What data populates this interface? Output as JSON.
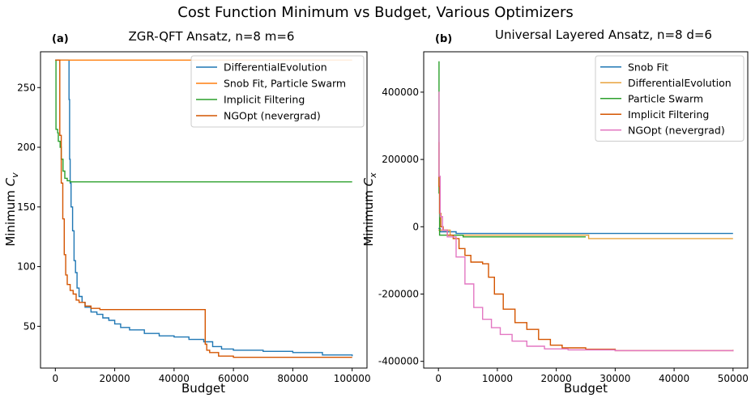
{
  "figure": {
    "suptitle": "Cost Function Minimum vs Budget, Various Optimizers"
  },
  "chart_data": [
    {
      "type": "line",
      "panel_label": "(a)",
      "title": "ZGR-QFT Ansatz, n=8 m=6",
      "xlabel": "Budget",
      "ylabel": "Minimum C_v",
      "ylabel_main": "Minimum ",
      "ylabel_var": "C",
      "ylabel_sub": "v",
      "xlim": [
        -5000,
        105000
      ],
      "ylim": [
        15,
        280
      ],
      "xticks": [
        0,
        20000,
        40000,
        60000,
        80000,
        100000
      ],
      "yticks": [
        50,
        100,
        150,
        200,
        250
      ],
      "legend_position": "top-right",
      "series": [
        {
          "name": "DifferentialEvolution",
          "color": "#1f77b4",
          "points": [
            [
              0,
              273
            ],
            [
              4500,
              273
            ],
            [
              4600,
              240
            ],
            [
              4800,
              190
            ],
            [
              5000,
              170
            ],
            [
              5300,
              150
            ],
            [
              5800,
              130
            ],
            [
              6300,
              105
            ],
            [
              6800,
              95
            ],
            [
              7300,
              82
            ],
            [
              8000,
              75
            ],
            [
              9000,
              70
            ],
            [
              10000,
              66
            ],
            [
              12000,
              62
            ],
            [
              14000,
              60
            ],
            [
              16000,
              57
            ],
            [
              18000,
              55
            ],
            [
              20000,
              52
            ],
            [
              22000,
              49
            ],
            [
              25000,
              47
            ],
            [
              30000,
              44
            ],
            [
              35000,
              42
            ],
            [
              40000,
              41
            ],
            [
              45000,
              39
            ],
            [
              50000,
              37
            ],
            [
              53000,
              33
            ],
            [
              56000,
              31
            ],
            [
              60000,
              30
            ],
            [
              70000,
              29
            ],
            [
              80000,
              28
            ],
            [
              90000,
              26
            ],
            [
              100000,
              25
            ]
          ]
        },
        {
          "name": "Snob Fit, Particle Swarm",
          "color": "#ff7f0e",
          "points": [
            [
              0,
              273
            ],
            [
              100000,
              273
            ]
          ]
        },
        {
          "name": "Implicit Filtering",
          "color": "#2ca02c",
          "points": [
            [
              0,
              273
            ],
            [
              200,
              215
            ],
            [
              800,
              212
            ],
            [
              1000,
              205
            ],
            [
              1600,
              200
            ],
            [
              2000,
              190
            ],
            [
              2600,
              180
            ],
            [
              3200,
              174
            ],
            [
              4000,
              172
            ],
            [
              5000,
              171
            ],
            [
              100000,
              171
            ]
          ]
        },
        {
          "name": "NGOpt (nevergrad)",
          "color": "#d45500",
          "points": [
            [
              0,
              273
            ],
            [
              1000,
              273
            ],
            [
              1500,
              210
            ],
            [
              2000,
              170
            ],
            [
              2500,
              140
            ],
            [
              3000,
              110
            ],
            [
              3500,
              93
            ],
            [
              4000,
              85
            ],
            [
              5000,
              80
            ],
            [
              6000,
              77
            ],
            [
              7000,
              72
            ],
            [
              8000,
              70
            ],
            [
              10000,
              67
            ],
            [
              12000,
              65
            ],
            [
              15000,
              64
            ],
            [
              50000,
              64
            ],
            [
              50500,
              35
            ],
            [
              51000,
              30
            ],
            [
              52000,
              28
            ],
            [
              55000,
              25
            ],
            [
              60000,
              24
            ],
            [
              70000,
              24
            ],
            [
              100000,
              24
            ]
          ]
        }
      ]
    },
    {
      "type": "line",
      "panel_label": "(b)",
      "title": "Universal Layered Ansatz, n=8 d=6",
      "xlabel": "Budget",
      "ylabel": "Minimum C_x",
      "ylabel_main": "Minimum ",
      "ylabel_var": "C",
      "ylabel_sub": "x",
      "xlim": [
        -2500,
        52500
      ],
      "ylim": [
        -420000,
        520000
      ],
      "xticks": [
        0,
        10000,
        20000,
        30000,
        40000,
        50000
      ],
      "yticks": [
        -400000,
        -200000,
        0,
        200000,
        400000
      ],
      "legend_position": "top-right",
      "series": [
        {
          "name": "Snob Fit",
          "color": "#1f77b4",
          "points": [
            [
              0,
              -5000
            ],
            [
              300,
              -15000
            ],
            [
              2000,
              -15000
            ],
            [
              3000,
              -20000
            ],
            [
              50000,
              -20000
            ]
          ]
        },
        {
          "name": "DifferentialEvolution",
          "color": "#e8a33d",
          "points": [
            [
              0,
              -10000
            ],
            [
              2000,
              -25000
            ],
            [
              25000,
              -25000
            ],
            [
              25500,
              -35000
            ],
            [
              50000,
              -35000
            ]
          ]
        },
        {
          "name": "Particle Swarm",
          "color": "#2ca02c",
          "points": [
            [
              0,
              490000
            ],
            [
              100,
              100000
            ],
            [
              200,
              -25000
            ],
            [
              4000,
              -25000
            ],
            [
              4200,
              -30000
            ],
            [
              25000,
              -30000
            ]
          ]
        },
        {
          "name": "Implicit Filtering",
          "color": "#d45500",
          "points": [
            [
              0,
              250000
            ],
            [
              100,
              120000
            ],
            [
              200,
              40000
            ],
            [
              400,
              0
            ],
            [
              800,
              -10000
            ],
            [
              1500,
              -25000
            ],
            [
              2500,
              -35000
            ],
            [
              3500,
              -65000
            ],
            [
              4500,
              -85000
            ],
            [
              5500,
              -105000
            ],
            [
              7500,
              -110000
            ],
            [
              8500,
              -150000
            ],
            [
              9500,
              -200000
            ],
            [
              11000,
              -245000
            ],
            [
              13000,
              -285000
            ],
            [
              15000,
              -305000
            ],
            [
              17000,
              -335000
            ],
            [
              19000,
              -352000
            ],
            [
              21000,
              -360000
            ],
            [
              25000,
              -364000
            ],
            [
              30000,
              -368000
            ],
            [
              40000,
              -368000
            ],
            [
              50000,
              -366000
            ]
          ]
        },
        {
          "name": "NGOpt (nevergrad)",
          "color": "#e377c2",
          "points": [
            [
              0,
              400000
            ],
            [
              100,
              150000
            ],
            [
              300,
              30000
            ],
            [
              700,
              -10000
            ],
            [
              1500,
              -30000
            ],
            [
              3000,
              -90000
            ],
            [
              4500,
              -170000
            ],
            [
              6000,
              -240000
            ],
            [
              7500,
              -275000
            ],
            [
              9000,
              -300000
            ],
            [
              10500,
              -320000
            ],
            [
              12500,
              -340000
            ],
            [
              15000,
              -355000
            ],
            [
              18000,
              -363000
            ],
            [
              22000,
              -366000
            ],
            [
              30000,
              -368000
            ],
            [
              40000,
              -368000
            ],
            [
              50000,
              -370000
            ]
          ]
        }
      ]
    }
  ]
}
